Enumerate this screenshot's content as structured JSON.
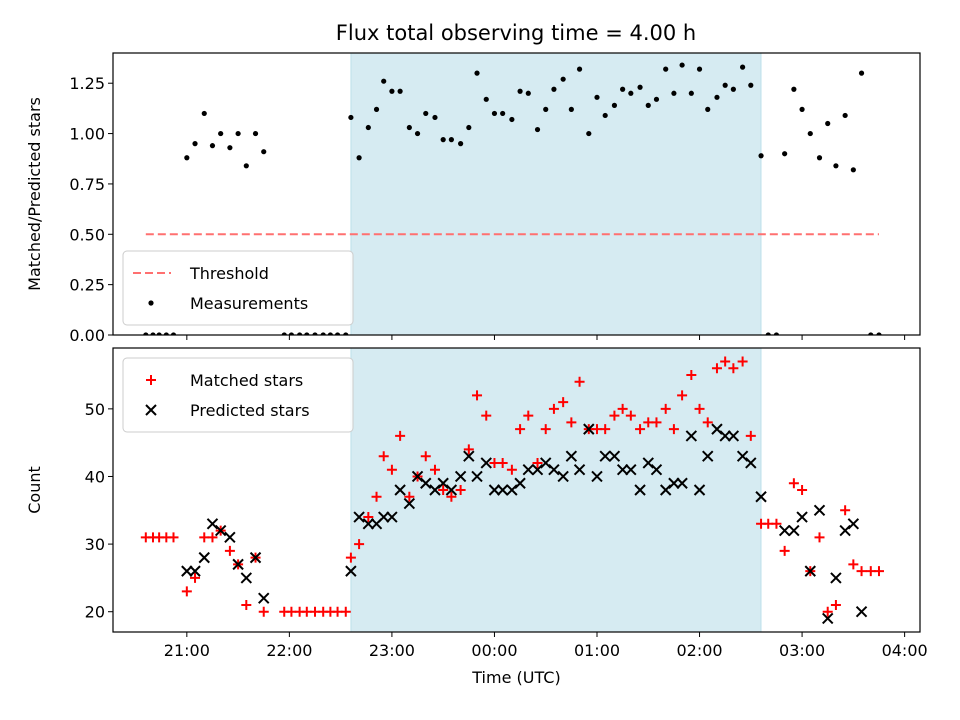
{
  "title": "Flux total observing time = 4.00 h",
  "chart_data": [
    {
      "type": "scatter",
      "ylabel": "Matched/Predicted stars",
      "xlabel": "",
      "x_unit": "hours since 20:00 UTC",
      "xlim": [
        0.28,
        8.15
      ],
      "ylim": [
        0,
        1.4
      ],
      "y_ticks": [
        0.0,
        0.25,
        0.5,
        0.75,
        1.0,
        1.25
      ],
      "y_tick_labels": [
        "0.00",
        "0.25",
        "0.50",
        "0.75",
        "1.00",
        "1.25"
      ],
      "grid": false,
      "legend_position": "lower-left",
      "shaded_interval": {
        "start": 2.6,
        "end": 6.6,
        "color": "#add8e6"
      },
      "threshold": {
        "name": "Threshold",
        "value": 0.5,
        "x_start": 0.6,
        "x_end": 7.75,
        "color": "#ff7070",
        "style": "dashed"
      },
      "series": [
        {
          "name": "Measurements",
          "color": "#000000",
          "marker": "dot",
          "points": [
            [
              0.6,
              0
            ],
            [
              0.67,
              0
            ],
            [
              0.73,
              0
            ],
            [
              0.8,
              0
            ],
            [
              0.87,
              0
            ],
            [
              1.0,
              0.88
            ],
            [
              1.08,
              0.95
            ],
            [
              1.17,
              1.1
            ],
            [
              1.25,
              0.94
            ],
            [
              1.33,
              1.0
            ],
            [
              1.42,
              0.93
            ],
            [
              1.5,
              1.0
            ],
            [
              1.58,
              0.84
            ],
            [
              1.67,
              1.0
            ],
            [
              1.75,
              0.91
            ],
            [
              1.95,
              0
            ],
            [
              2.02,
              0
            ],
            [
              2.1,
              0
            ],
            [
              2.17,
              0
            ],
            [
              2.25,
              0
            ],
            [
              2.33,
              0
            ],
            [
              2.4,
              0
            ],
            [
              2.47,
              0
            ],
            [
              2.55,
              0
            ],
            [
              2.6,
              1.08
            ],
            [
              2.68,
              0.88
            ],
            [
              2.77,
              1.03
            ],
            [
              2.85,
              1.12
            ],
            [
              2.92,
              1.26
            ],
            [
              3.0,
              1.21
            ],
            [
              3.08,
              1.21
            ],
            [
              3.17,
              1.03
            ],
            [
              3.25,
              1.0
            ],
            [
              3.33,
              1.1
            ],
            [
              3.42,
              1.08
            ],
            [
              3.5,
              0.97
            ],
            [
              3.58,
              0.97
            ],
            [
              3.67,
              0.95
            ],
            [
              3.75,
              1.03
            ],
            [
              3.83,
              1.3
            ],
            [
              3.92,
              1.17
            ],
            [
              4.0,
              1.1
            ],
            [
              4.08,
              1.1
            ],
            [
              4.17,
              1.07
            ],
            [
              4.25,
              1.21
            ],
            [
              4.33,
              1.2
            ],
            [
              4.42,
              1.02
            ],
            [
              4.5,
              1.12
            ],
            [
              4.58,
              1.22
            ],
            [
              4.67,
              1.27
            ],
            [
              4.75,
              1.12
            ],
            [
              4.83,
              1.32
            ],
            [
              4.92,
              1.0
            ],
            [
              5.0,
              1.18
            ],
            [
              5.08,
              1.09
            ],
            [
              5.17,
              1.14
            ],
            [
              5.25,
              1.22
            ],
            [
              5.33,
              1.2
            ],
            [
              5.42,
              1.23
            ],
            [
              5.5,
              1.14
            ],
            [
              5.58,
              1.17
            ],
            [
              5.67,
              1.32
            ],
            [
              5.75,
              1.2
            ],
            [
              5.83,
              1.34
            ],
            [
              5.92,
              1.2
            ],
            [
              6.0,
              1.32
            ],
            [
              6.08,
              1.12
            ],
            [
              6.17,
              1.18
            ],
            [
              6.25,
              1.24
            ],
            [
              6.33,
              1.22
            ],
            [
              6.42,
              1.33
            ],
            [
              6.5,
              1.24
            ],
            [
              6.6,
              0.89
            ],
            [
              6.67,
              0
            ],
            [
              6.75,
              0
            ],
            [
              6.83,
              0.9
            ],
            [
              6.92,
              1.22
            ],
            [
              7.0,
              1.12
            ],
            [
              7.08,
              1.0
            ],
            [
              7.17,
              0.88
            ],
            [
              7.25,
              1.05
            ],
            [
              7.33,
              0.84
            ],
            [
              7.42,
              1.09
            ],
            [
              7.5,
              0.82
            ],
            [
              7.58,
              1.3
            ],
            [
              7.67,
              0
            ],
            [
              7.75,
              0
            ]
          ]
        }
      ]
    },
    {
      "type": "scatter",
      "ylabel": "Count",
      "xlabel": "Time (UTC)",
      "x_unit": "hours since 20:00 UTC",
      "xlim": [
        0.28,
        8.15
      ],
      "ylim": [
        17,
        59
      ],
      "x_ticks": [
        1,
        2,
        3,
        4,
        5,
        6,
        7,
        8
      ],
      "x_tick_labels": [
        "21:00",
        "22:00",
        "23:00",
        "00:00",
        "01:00",
        "02:00",
        "03:00",
        "04:00"
      ],
      "y_ticks": [
        20,
        30,
        40,
        50
      ],
      "y_tick_labels": [
        "20",
        "30",
        "40",
        "50"
      ],
      "grid": false,
      "legend_position": "upper-left",
      "shaded_interval": {
        "start": 2.6,
        "end": 6.6,
        "color": "#add8e6"
      },
      "series": [
        {
          "name": "Matched stars",
          "color": "#ff0000",
          "marker": "plus",
          "points": [
            [
              0.6,
              31
            ],
            [
              0.67,
              31
            ],
            [
              0.73,
              31
            ],
            [
              0.8,
              31
            ],
            [
              0.87,
              31
            ],
            [
              1.0,
              23
            ],
            [
              1.08,
              25
            ],
            [
              1.17,
              31
            ],
            [
              1.25,
              31
            ],
            [
              1.33,
              32
            ],
            [
              1.42,
              29
            ],
            [
              1.5,
              27
            ],
            [
              1.58,
              21
            ],
            [
              1.67,
              28
            ],
            [
              1.75,
              20
            ],
            [
              1.95,
              20
            ],
            [
              2.02,
              20
            ],
            [
              2.1,
              20
            ],
            [
              2.17,
              20
            ],
            [
              2.25,
              20
            ],
            [
              2.33,
              20
            ],
            [
              2.4,
              20
            ],
            [
              2.47,
              20
            ],
            [
              2.55,
              20
            ],
            [
              2.6,
              28
            ],
            [
              2.68,
              30
            ],
            [
              2.77,
              34
            ],
            [
              2.85,
              37
            ],
            [
              2.92,
              43
            ],
            [
              3.0,
              41
            ],
            [
              3.08,
              46
            ],
            [
              3.17,
              37
            ],
            [
              3.25,
              40
            ],
            [
              3.33,
              43
            ],
            [
              3.42,
              41
            ],
            [
              3.5,
              38
            ],
            [
              3.58,
              37
            ],
            [
              3.67,
              38
            ],
            [
              3.75,
              44
            ],
            [
              3.83,
              52
            ],
            [
              3.92,
              49
            ],
            [
              4.0,
              42
            ],
            [
              4.08,
              42
            ],
            [
              4.17,
              41
            ],
            [
              4.25,
              47
            ],
            [
              4.33,
              49
            ],
            [
              4.42,
              42
            ],
            [
              4.5,
              47
            ],
            [
              4.58,
              50
            ],
            [
              4.67,
              51
            ],
            [
              4.75,
              48
            ],
            [
              4.83,
              54
            ],
            [
              4.92,
              47
            ],
            [
              5.0,
              47
            ],
            [
              5.08,
              47
            ],
            [
              5.17,
              49
            ],
            [
              5.25,
              50
            ],
            [
              5.33,
              49
            ],
            [
              5.42,
              47
            ],
            [
              5.5,
              48
            ],
            [
              5.58,
              48
            ],
            [
              5.67,
              50
            ],
            [
              5.75,
              47
            ],
            [
              5.83,
              52
            ],
            [
              5.92,
              55
            ],
            [
              6.0,
              50
            ],
            [
              6.08,
              48
            ],
            [
              6.17,
              56
            ],
            [
              6.25,
              57
            ],
            [
              6.33,
              56
            ],
            [
              6.42,
              57
            ],
            [
              6.5,
              46
            ],
            [
              6.6,
              33
            ],
            [
              6.67,
              33
            ],
            [
              6.75,
              33
            ],
            [
              6.83,
              29
            ],
            [
              6.92,
              39
            ],
            [
              7.0,
              38
            ],
            [
              7.08,
              26
            ],
            [
              7.17,
              31
            ],
            [
              7.25,
              20
            ],
            [
              7.33,
              21
            ],
            [
              7.42,
              35
            ],
            [
              7.5,
              27
            ],
            [
              7.58,
              26
            ],
            [
              7.67,
              26
            ],
            [
              7.75,
              26
            ]
          ]
        },
        {
          "name": "Predicted stars",
          "color": "#000000",
          "marker": "x",
          "points": [
            [
              1.0,
              26
            ],
            [
              1.08,
              26
            ],
            [
              1.17,
              28
            ],
            [
              1.25,
              33
            ],
            [
              1.33,
              32
            ],
            [
              1.42,
              31
            ],
            [
              1.5,
              27
            ],
            [
              1.58,
              25
            ],
            [
              1.67,
              28
            ],
            [
              1.75,
              22
            ],
            [
              2.6,
              26
            ],
            [
              2.68,
              34
            ],
            [
              2.77,
              33
            ],
            [
              2.85,
              33
            ],
            [
              2.92,
              34
            ],
            [
              3.0,
              34
            ],
            [
              3.08,
              38
            ],
            [
              3.17,
              36
            ],
            [
              3.25,
              40
            ],
            [
              3.33,
              39
            ],
            [
              3.42,
              38
            ],
            [
              3.5,
              39
            ],
            [
              3.58,
              38
            ],
            [
              3.67,
              40
            ],
            [
              3.75,
              43
            ],
            [
              3.83,
              40
            ],
            [
              3.92,
              42
            ],
            [
              4.0,
              38
            ],
            [
              4.08,
              38
            ],
            [
              4.17,
              38
            ],
            [
              4.25,
              39
            ],
            [
              4.33,
              41
            ],
            [
              4.42,
              41
            ],
            [
              4.5,
              42
            ],
            [
              4.58,
              41
            ],
            [
              4.67,
              40
            ],
            [
              4.75,
              43
            ],
            [
              4.83,
              41
            ],
            [
              4.92,
              47
            ],
            [
              5.0,
              40
            ],
            [
              5.08,
              43
            ],
            [
              5.17,
              43
            ],
            [
              5.25,
              41
            ],
            [
              5.33,
              41
            ],
            [
              5.42,
              38
            ],
            [
              5.5,
              42
            ],
            [
              5.58,
              41
            ],
            [
              5.67,
              38
            ],
            [
              5.75,
              39
            ],
            [
              5.83,
              39
            ],
            [
              5.92,
              46
            ],
            [
              6.0,
              38
            ],
            [
              6.08,
              43
            ],
            [
              6.17,
              47
            ],
            [
              6.25,
              46
            ],
            [
              6.33,
              46
            ],
            [
              6.42,
              43
            ],
            [
              6.5,
              42
            ],
            [
              6.6,
              37
            ],
            [
              6.83,
              32
            ],
            [
              6.92,
              32
            ],
            [
              7.0,
              34
            ],
            [
              7.08,
              26
            ],
            [
              7.17,
              35
            ],
            [
              7.25,
              19
            ],
            [
              7.33,
              25
            ],
            [
              7.42,
              32
            ],
            [
              7.5,
              33
            ],
            [
              7.58,
              20
            ]
          ]
        }
      ]
    }
  ]
}
